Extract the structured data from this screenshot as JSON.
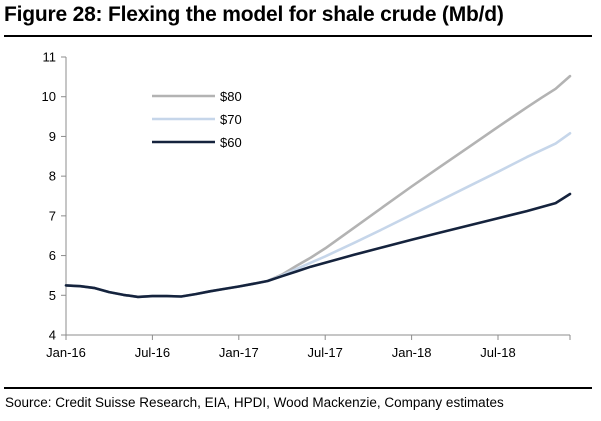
{
  "title": "Figure 28: Flexing the model for shale crude (Mb/d)",
  "source": "Source: Credit Suisse Research, EIA, HPDI, Wood Mackenzie, Company estimates",
  "chart_data": {
    "type": "line",
    "title": "Figure 28: Flexing the model for shale crude (Mb/d)",
    "xlabel": "",
    "ylabel": "",
    "ylim": [
      4,
      11
    ],
    "yticks": [
      4,
      5,
      6,
      7,
      8,
      9,
      10,
      11
    ],
    "xlim": [
      0,
      35
    ],
    "x_tick_positions": [
      0,
      6,
      12,
      18,
      24,
      30
    ],
    "x_tick_labels": [
      "Jan-16",
      "Jul-16",
      "Jan-17",
      "Jul-17",
      "Jan-18",
      "Jul-18"
    ],
    "x_unit": "months since Jan-2016",
    "grid": false,
    "legend_position": "top-left",
    "series": [
      {
        "name": "$80",
        "color": "#b3b3b3",
        "points": [
          [
            0,
            5.25
          ],
          [
            1,
            5.23
          ],
          [
            2,
            5.18
          ],
          [
            3,
            5.08
          ],
          [
            4,
            5.01
          ],
          [
            5,
            4.96
          ],
          [
            6,
            4.98
          ],
          [
            7,
            4.98
          ],
          [
            8,
            4.97
          ],
          [
            9,
            5.03
          ],
          [
            10,
            5.1
          ],
          [
            11,
            5.16
          ],
          [
            12,
            5.22
          ],
          [
            13,
            5.29
          ],
          [
            14,
            5.36
          ],
          [
            15,
            5.52
          ],
          [
            16,
            5.74
          ],
          [
            17,
            5.95
          ],
          [
            18,
            6.18
          ],
          [
            20,
            6.7
          ],
          [
            22,
            7.22
          ],
          [
            24,
            7.74
          ],
          [
            26,
            8.24
          ],
          [
            28,
            8.74
          ],
          [
            30,
            9.24
          ],
          [
            32,
            9.73
          ],
          [
            33,
            9.97
          ],
          [
            34,
            10.2
          ],
          [
            35,
            10.52
          ]
        ]
      },
      {
        "name": "$70",
        "color": "#c6d6ea",
        "points": [
          [
            0,
            5.25
          ],
          [
            1,
            5.23
          ],
          [
            2,
            5.18
          ],
          [
            3,
            5.08
          ],
          [
            4,
            5.01
          ],
          [
            5,
            4.96
          ],
          [
            6,
            4.98
          ],
          [
            7,
            4.98
          ],
          [
            8,
            4.97
          ],
          [
            9,
            5.03
          ],
          [
            10,
            5.1
          ],
          [
            11,
            5.16
          ],
          [
            12,
            5.22
          ],
          [
            13,
            5.29
          ],
          [
            14,
            5.36
          ],
          [
            15,
            5.5
          ],
          [
            16,
            5.66
          ],
          [
            17,
            5.82
          ],
          [
            18,
            5.98
          ],
          [
            20,
            6.32
          ],
          [
            22,
            6.67
          ],
          [
            24,
            7.03
          ],
          [
            26,
            7.39
          ],
          [
            28,
            7.75
          ],
          [
            30,
            8.11
          ],
          [
            32,
            8.48
          ],
          [
            34,
            8.82
          ],
          [
            35,
            9.08
          ]
        ]
      },
      {
        "name": "$60",
        "color": "#15233d",
        "points": [
          [
            0,
            5.25
          ],
          [
            1,
            5.23
          ],
          [
            2,
            5.18
          ],
          [
            3,
            5.08
          ],
          [
            4,
            5.01
          ],
          [
            5,
            4.96
          ],
          [
            6,
            4.98
          ],
          [
            7,
            4.98
          ],
          [
            8,
            4.97
          ],
          [
            9,
            5.03
          ],
          [
            10,
            5.1
          ],
          [
            11,
            5.16
          ],
          [
            12,
            5.22
          ],
          [
            13,
            5.29
          ],
          [
            14,
            5.36
          ],
          [
            15,
            5.48
          ],
          [
            16,
            5.6
          ],
          [
            17,
            5.72
          ],
          [
            18,
            5.82
          ],
          [
            20,
            6.02
          ],
          [
            22,
            6.21
          ],
          [
            24,
            6.4
          ],
          [
            26,
            6.58
          ],
          [
            28,
            6.76
          ],
          [
            30,
            6.94
          ],
          [
            32,
            7.12
          ],
          [
            34,
            7.32
          ],
          [
            35,
            7.55
          ]
        ]
      }
    ]
  }
}
